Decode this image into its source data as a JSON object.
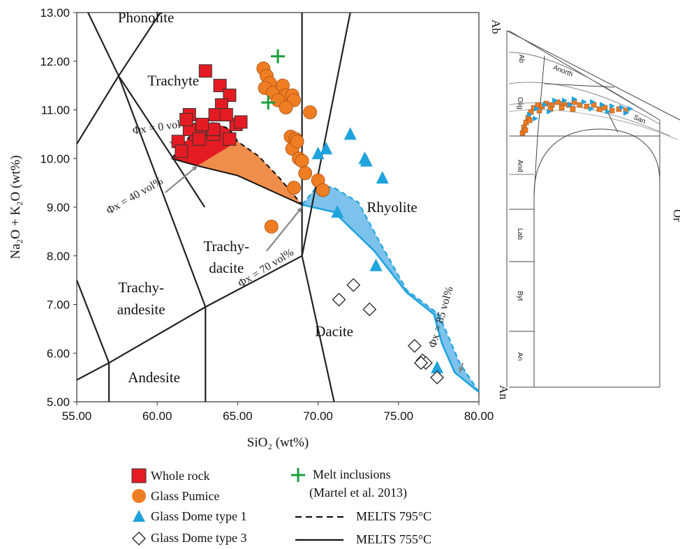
{
  "chart_data": [
    {
      "type": "scatter",
      "title": "",
      "xlabel": "SiO₂ (wt%)",
      "ylabel": "Na₂O + K₂O (wt%)",
      "xlim": [
        55,
        80
      ],
      "ylim": [
        5,
        13
      ],
      "x_ticks": [
        "55.00",
        "60.00",
        "65.00",
        "70.00",
        "75.00",
        "80.00"
      ],
      "y_ticks": [
        "5.00",
        "6.00",
        "7.00",
        "8.00",
        "9.00",
        "10.00",
        "11.00",
        "12.00",
        "13.00"
      ],
      "fields": [
        {
          "name": "Phonolite",
          "x": 59.3,
          "y": 12.8
        },
        {
          "name": "Trachyte",
          "x": 61.0,
          "y": 11.5
        },
        {
          "name": "Trachy-",
          "x": 64.3,
          "y": 8.1
        },
        {
          "name": "dacite",
          "x": 64.3,
          "y": 7.65
        },
        {
          "name": "Trachy-",
          "x": 59.0,
          "y": 7.25
        },
        {
          "name": "andesite",
          "x": 59.0,
          "y": 6.8
        },
        {
          "name": "Rhyolite",
          "x": 74.6,
          "y": 8.9
        },
        {
          "name": "Dacite",
          "x": 71.0,
          "y": 6.35
        },
        {
          "name": "Andesite",
          "x": 59.8,
          "y": 5.4
        }
      ],
      "boundaries": [
        [
          [
            55,
            10.3
          ],
          [
            57.6,
            11.7
          ],
          [
            60.2,
            13.0
          ]
        ],
        [
          [
            55.7,
            13.0
          ],
          [
            57.6,
            11.7
          ],
          [
            63.0,
            6.95
          ],
          [
            69.0,
            8.0
          ],
          [
            69.0,
            13.0
          ]
        ],
        [
          [
            57.6,
            11.7
          ],
          [
            61.0,
            10.0
          ],
          [
            62.95,
            9.0
          ]
        ],
        [
          [
            55,
            7.5
          ],
          [
            57.0,
            5.8
          ],
          [
            63.0,
            6.95
          ]
        ],
        [
          [
            55,
            5.45
          ],
          [
            57.0,
            5.8
          ],
          [
            57.0,
            5.0
          ]
        ],
        [
          [
            63.0,
            6.95
          ],
          [
            63.0,
            5.0
          ]
        ],
        [
          [
            69.0,
            8.0
          ],
          [
            71.0,
            5.0
          ]
        ],
        [
          [
            69.0,
            8.0
          ],
          [
            72.0,
            13.0
          ]
        ]
      ],
      "melt_band": {
        "orange_upper": [
          [
            65.0,
            10.35
          ],
          [
            66.3,
            10.05
          ],
          [
            67.6,
            9.6
          ],
          [
            69.0,
            9.05
          ]
        ],
        "orange_lower": [
          [
            62.5,
            9.85
          ],
          [
            65.0,
            9.65
          ],
          [
            67.0,
            9.35
          ],
          [
            69.0,
            9.05
          ]
        ],
        "red_upper": [
          [
            60.9,
            10.0
          ],
          [
            62.0,
            10.45
          ],
          [
            63.5,
            10.75
          ],
          [
            64.5,
            10.6
          ],
          [
            65.0,
            10.35
          ]
        ],
        "red_lower": [
          [
            60.9,
            10.0
          ],
          [
            62.5,
            9.85
          ],
          [
            65.0,
            10.35
          ]
        ],
        "blue_upper": [
          [
            69.0,
            9.05
          ],
          [
            70.0,
            9.45
          ],
          [
            71.0,
            9.4
          ],
          [
            72.5,
            9.1
          ],
          [
            73.8,
            8.3
          ],
          [
            75.5,
            7.3
          ],
          [
            77.5,
            6.8
          ],
          [
            78.8,
            5.8
          ],
          [
            80.0,
            5.2
          ]
        ],
        "blue_lower": [
          [
            69.0,
            9.05
          ],
          [
            71.0,
            8.9
          ],
          [
            73.5,
            8.1
          ],
          [
            75.5,
            7.25
          ],
          [
            77.2,
            6.8
          ],
          [
            77.7,
            6.2
          ],
          [
            78.5,
            5.6
          ],
          [
            80.0,
            5.2
          ]
        ]
      },
      "phi_annotations": [
        {
          "label": "Φx = 0 vol%",
          "x": 58.5,
          "y": 10.5,
          "angle": -8
        },
        {
          "label": "Φx = 40 vol%",
          "x": 57.0,
          "y": 8.85,
          "angle": -30
        },
        {
          "label": "Φx = 70 vol%",
          "x": 65.2,
          "y": 7.35,
          "angle": -32
        },
        {
          "label": "Φx = 85 vol%",
          "x": 77.3,
          "y": 6.1,
          "angle": -74
        }
      ],
      "series": [
        {
          "name": "Whole rock",
          "marker": "square",
          "color": "#e41b23",
          "x": [
            63.0,
            63.9,
            64.5,
            64.0,
            63.6,
            64.9,
            64.3,
            65.2,
            63.4,
            62.4,
            62.0,
            61.3,
            61.5,
            62.6,
            63.5,
            64.5,
            63.5,
            62.0,
            62.8,
            61.8
          ],
          "y": [
            11.8,
            11.5,
            11.3,
            11.1,
            10.9,
            10.7,
            10.9,
            10.75,
            10.6,
            10.5,
            10.6,
            10.35,
            10.15,
            10.4,
            10.5,
            10.4,
            10.6,
            10.9,
            10.7,
            10.8
          ]
        },
        {
          "name": "Glass Pumice",
          "marker": "circle",
          "color": "#ef7d22",
          "x": [
            66.6,
            66.8,
            67.0,
            66.7,
            67.2,
            67.8,
            68.0,
            67.5,
            68.4,
            68.5,
            68.0,
            69.5,
            68.3,
            68.6,
            68.4,
            68.7,
            68.8,
            69.0,
            69.2,
            70.0,
            70.3,
            68.5,
            67.1
          ],
          "y": [
            11.85,
            11.7,
            11.55,
            11.45,
            11.35,
            11.5,
            11.3,
            11.2,
            11.3,
            11.2,
            11.05,
            10.95,
            10.45,
            10.4,
            10.2,
            10.35,
            10.0,
            9.95,
            9.7,
            9.55,
            9.35,
            9.4,
            8.6
          ],
          "labels": []
        },
        {
          "name": "Glass Dome type 1",
          "marker": "triangle",
          "color": "#1ea3dd",
          "x": [
            72.0,
            70.5,
            70.0,
            72.9,
            73.0,
            74.0,
            71.2,
            73.6,
            77.4
          ],
          "y": [
            10.5,
            10.2,
            10.1,
            10.0,
            9.95,
            9.6,
            8.9,
            7.8,
            5.7
          ]
        },
        {
          "name": "Glass Dome type 3",
          "marker": "diamond",
          "color": "#ffffff",
          "x": [
            71.3,
            72.2,
            73.2,
            76.0,
            76.5,
            76.7,
            76.4,
            77.4
          ],
          "y": [
            7.1,
            7.4,
            6.9,
            6.15,
            5.85,
            5.8,
            5.8,
            5.5
          ]
        },
        {
          "name": "Melt inclusions",
          "marker": "plus",
          "color": "#1a9e3a",
          "x": [
            67.5,
            66.9
          ],
          "y": [
            12.1,
            11.15
          ]
        }
      ]
    },
    {
      "type": "ternary",
      "apex_labels": [
        "Ab",
        "An",
        "Or"
      ],
      "region_labels": [
        "Ab",
        "Olig",
        "And",
        "Lab",
        "Byt",
        "An",
        "Anorth",
        "San"
      ],
      "series": [
        {
          "name": "Whole rock / Glass Pumice",
          "marker": "square",
          "color": "#ef7d22"
        },
        {
          "name": "Glass Dome type 1",
          "marker": "triangle",
          "color": "#1ea3dd"
        }
      ]
    }
  ],
  "legend": {
    "items": [
      {
        "label": "Whole rock",
        "marker": "square",
        "color": "#e41b23"
      },
      {
        "label": "Glass Pumice",
        "marker": "circle",
        "color": "#ef7d22"
      },
      {
        "label": "Glass Dome type 1",
        "marker": "triangle",
        "color": "#1ea3dd"
      },
      {
        "label": "Glass Dome type 3",
        "marker": "diamond",
        "color": "#ffffff"
      },
      {
        "label": "Melt inclusions",
        "label2": "(Martel et al. 2013)",
        "marker": "plus",
        "color": "#1a9e3a"
      },
      {
        "label": "MELTS 795°C",
        "marker": "dashed-line",
        "color": "#111111"
      },
      {
        "label": "MELTS 755°C",
        "marker": "solid-line",
        "color": "#111111"
      }
    ]
  },
  "colors": {
    "red_band": "#e41b23",
    "orange_band": "#ef8d4a",
    "blue_band": "#7cc2ec",
    "blue_line": "#1ea3dd",
    "boundary": "#222222"
  }
}
